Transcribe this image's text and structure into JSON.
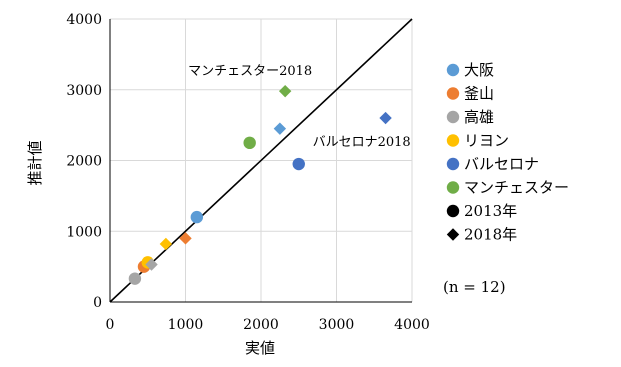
{
  "chart_data": {
    "type": "scatter",
    "xlabel": "実値",
    "ylabel": "推計値",
    "xlim": [
      0,
      4000
    ],
    "ylim": [
      0,
      4000
    ],
    "xticks": [
      0,
      1000,
      2000,
      3000,
      4000
    ],
    "yticks": [
      0,
      1000,
      2000,
      3000,
      4000
    ],
    "grid": true,
    "legend_position": "right",
    "reference_line": {
      "from": [
        0,
        0
      ],
      "to": [
        4000,
        4000
      ]
    },
    "series": [
      {
        "name": "大阪",
        "color": "#5B9BD5",
        "points": [
          {
            "x": 1150,
            "y": 1200,
            "year": 2013
          },
          {
            "x": 2250,
            "y": 2450,
            "year": 2018
          }
        ]
      },
      {
        "name": "釜山",
        "color": "#ED7D31",
        "points": [
          {
            "x": 450,
            "y": 500,
            "year": 2013
          },
          {
            "x": 1000,
            "y": 900,
            "year": 2018
          }
        ]
      },
      {
        "name": "高雄",
        "color": "#A5A5A5",
        "points": [
          {
            "x": 330,
            "y": 330,
            "year": 2013
          },
          {
            "x": 550,
            "y": 530,
            "year": 2018
          }
        ]
      },
      {
        "name": "リヨン",
        "color": "#FFC000",
        "points": [
          {
            "x": 500,
            "y": 560,
            "year": 2013
          },
          {
            "x": 740,
            "y": 820,
            "year": 2018
          }
        ]
      },
      {
        "name": "バルセロナ",
        "color": "#4472C4",
        "points": [
          {
            "x": 2500,
            "y": 1950,
            "year": 2013
          },
          {
            "x": 3650,
            "y": 2600,
            "year": 2018
          }
        ]
      },
      {
        "name": "マンチェスター",
        "color": "#70AD47",
        "points": [
          {
            "x": 1850,
            "y": 2250,
            "year": 2013
          },
          {
            "x": 2320,
            "y": 2980,
            "year": 2018
          }
        ]
      }
    ],
    "marker_legend": [
      {
        "label": "2013年",
        "shape": "circle"
      },
      {
        "label": "2018年",
        "shape": "diamond"
      }
    ],
    "annotations": [
      {
        "text": "マンチェスター2018",
        "x": 2320,
        "y": 2980
      },
      {
        "text": "バルセロナ2018",
        "x": 3650,
        "y": 2600
      }
    ],
    "note": "(n = 12)"
  }
}
